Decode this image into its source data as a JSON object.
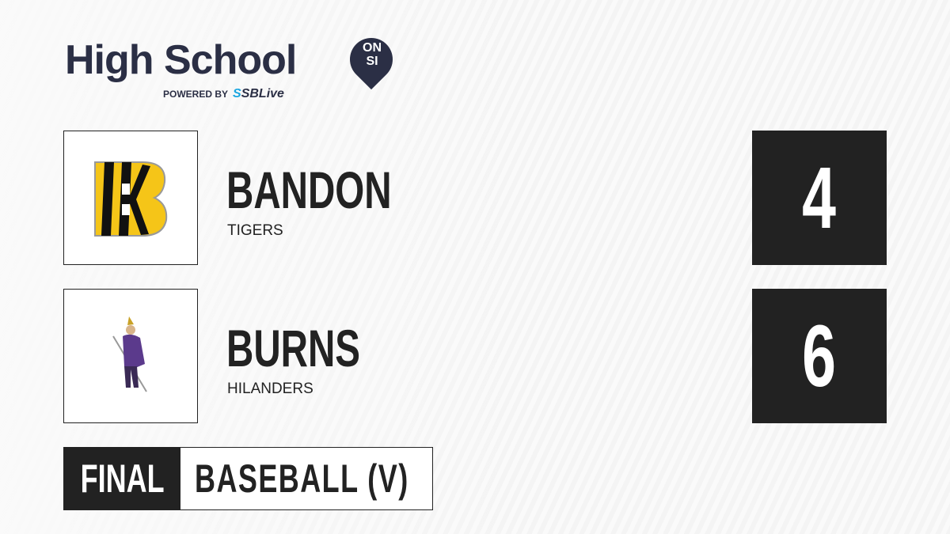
{
  "brand": {
    "title": "High School",
    "badge_top": "ON",
    "badge_bottom": "SI",
    "powered_by": "POWERED BY",
    "partner_prefix": "S",
    "partner": "SBLive"
  },
  "teams": [
    {
      "name": "BANDON",
      "mascot": "TIGERS",
      "score": "4",
      "logo": "tiger-stripes-b-logo",
      "logo_color": "#f5c518"
    },
    {
      "name": "BURNS",
      "mascot": "HILANDERS",
      "score": "6",
      "logo": "highlander-warrior-logo",
      "logo_color": "#5b3a8c"
    }
  ],
  "status": "FINAL",
  "sport": "BASEBALL (V)"
}
